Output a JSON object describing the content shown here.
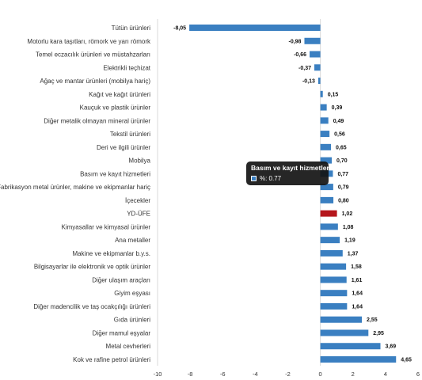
{
  "chart_data": {
    "type": "bar",
    "orientation": "horizontal",
    "categories": [
      "Tütün ürünleri",
      "Motorlu kara taşıtları, römork ve yarı römork",
      "Temel eczacılık ürünleri ve müstahzarları",
      "Elektrikli teçhizat",
      "Ağaç ve mantar ürünleri (mobilya hariç)",
      "Kağıt ve kağıt ürünleri",
      "Kauçuk ve plastik ürünler",
      "Diğer metalik olmayan mineral ürünler",
      "Tekstil ürünleri",
      "Deri ve ilgili ürünler",
      "Mobilya",
      "Basım ve kayıt hizmetleri",
      "Fabrikasyon metal ürünler, makine ve ekipmanlar hariç",
      "İçecekler",
      "YD-ÜFE",
      "Kimyasallar ve kimyasal ürünler",
      "Ana metaller",
      "Makine ve ekipmanlar b.y.s.",
      "Bilgisayarlar ile elektronik ve optik ürünler",
      "Diğer ulaşım araçları",
      "Giyim eşyası",
      "Diğer madencilik ve taş ocakçılığı ürünleri",
      "Gıda ürünleri",
      "Diğer mamul eşyalar",
      "Metal cevherleri",
      "Kok ve rafine petrol ürünleri"
    ],
    "series": [
      {
        "name": "%",
        "values": [
          -8.05,
          -0.98,
          -0.66,
          -0.37,
          -0.13,
          0.15,
          0.39,
          0.49,
          0.56,
          0.65,
          0.7,
          0.77,
          0.79,
          0.8,
          1.02,
          1.08,
          1.19,
          1.37,
          1.58,
          1.61,
          1.64,
          1.64,
          2.55,
          2.95,
          3.69,
          4.65
        ],
        "labels": [
          "-8,05",
          "-0,98",
          "-0,66",
          "-0,37",
          "-0,13",
          "0,15",
          "0,39",
          "0,49",
          "0,56",
          "0,65",
          "0,70",
          "0,77",
          "0,79",
          "0,80",
          "1,02",
          "1,08",
          "1,19",
          "1,37",
          "1,58",
          "1,61",
          "1,64",
          "1,64",
          "2,55",
          "2,95",
          "3,69",
          "4,65"
        ]
      }
    ],
    "highlight_category": "YD-ÜFE",
    "colors": {
      "bar": "#3a7fc1",
      "highlight": "#b5161c",
      "axis": "#d9d9d9"
    },
    "xlim": [
      -10,
      6
    ],
    "xticks": [
      -10,
      -8,
      -6,
      -4,
      -2,
      0,
      2,
      4,
      6
    ],
    "grid": false,
    "legend": "none",
    "title": "",
    "xlabel": "",
    "ylabel": ""
  },
  "tooltip": {
    "title": "Basım ve kayıt hizmetleri",
    "series_label": "%: 0.77",
    "swatch_color": "#3a7fc1"
  }
}
